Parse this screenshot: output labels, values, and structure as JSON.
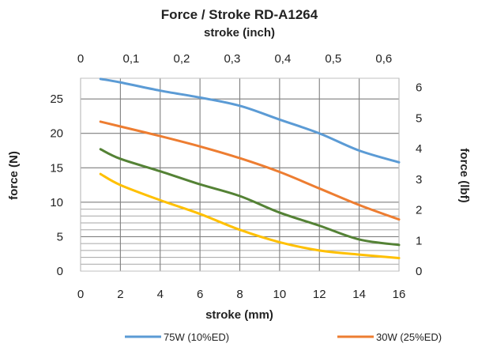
{
  "chart_data": {
    "type": "line",
    "title": "Force / Stroke  RD-A1264",
    "x2_title": "stroke (inch)",
    "x_title": "stroke (mm)",
    "y_title": "force (N)",
    "y2_title": "force (lbf)",
    "xlim": [
      0,
      16
    ],
    "ylim": [
      0,
      28
    ],
    "x2lim": [
      0,
      0.63
    ],
    "y2lim": [
      0,
      6.3
    ],
    "x_ticks": [
      0,
      2,
      4,
      6,
      8,
      10,
      12,
      14,
      16
    ],
    "x_tick_labels": [
      "0",
      "2",
      "4",
      "6",
      "8",
      "10",
      "12",
      "14",
      "16"
    ],
    "y_ticks": [
      0,
      5,
      10,
      15,
      20,
      25
    ],
    "y_tick_labels": [
      "0",
      "5",
      "10",
      "15",
      "20",
      "25"
    ],
    "x2_ticks": [
      0,
      0.1,
      0.2,
      0.3,
      0.4,
      0.5,
      0.6
    ],
    "x2_tick_labels": [
      "0",
      "0,1",
      "0,2",
      "0,3",
      "0,4",
      "0,5",
      "0,6"
    ],
    "y2_ticks": [
      0,
      1,
      2,
      3,
      4,
      5,
      6
    ],
    "y2_tick_labels": [
      "0",
      "1",
      "2",
      "3",
      "4",
      "5",
      "6"
    ],
    "y_minor_gridlines": [
      1,
      2,
      3,
      4,
      6,
      7,
      8,
      9
    ],
    "grid": true,
    "legend_position": "bottom",
    "series": [
      {
        "name": "75W (10%ED)",
        "color": "#5b9bd5",
        "x": [
          1,
          2,
          4,
          6,
          8,
          10,
          12,
          14,
          16
        ],
        "y": [
          27.9,
          27.4,
          26.2,
          25.2,
          24.0,
          22.0,
          20.0,
          17.5,
          15.8
        ]
      },
      {
        "name": "30W (25%ED)",
        "color": "#ed7d31",
        "x": [
          1,
          2,
          4,
          6,
          8,
          10,
          12,
          14,
          16
        ],
        "y": [
          21.7,
          21.0,
          19.6,
          18.1,
          16.4,
          14.4,
          12.0,
          9.6,
          7.5
        ]
      },
      {
        "name": "",
        "color": "#548235",
        "x": [
          1,
          2,
          4,
          6,
          8,
          10,
          12,
          14,
          16
        ],
        "y": [
          17.7,
          16.3,
          14.5,
          12.6,
          10.9,
          8.5,
          6.6,
          4.6,
          3.8
        ]
      },
      {
        "name": "",
        "color": "#ffc000",
        "x": [
          1,
          2,
          4,
          6,
          8,
          10,
          12,
          14,
          16
        ],
        "y": [
          14.1,
          12.5,
          10.3,
          8.3,
          6.0,
          4.2,
          3.0,
          2.4,
          1.9
        ]
      }
    ]
  }
}
